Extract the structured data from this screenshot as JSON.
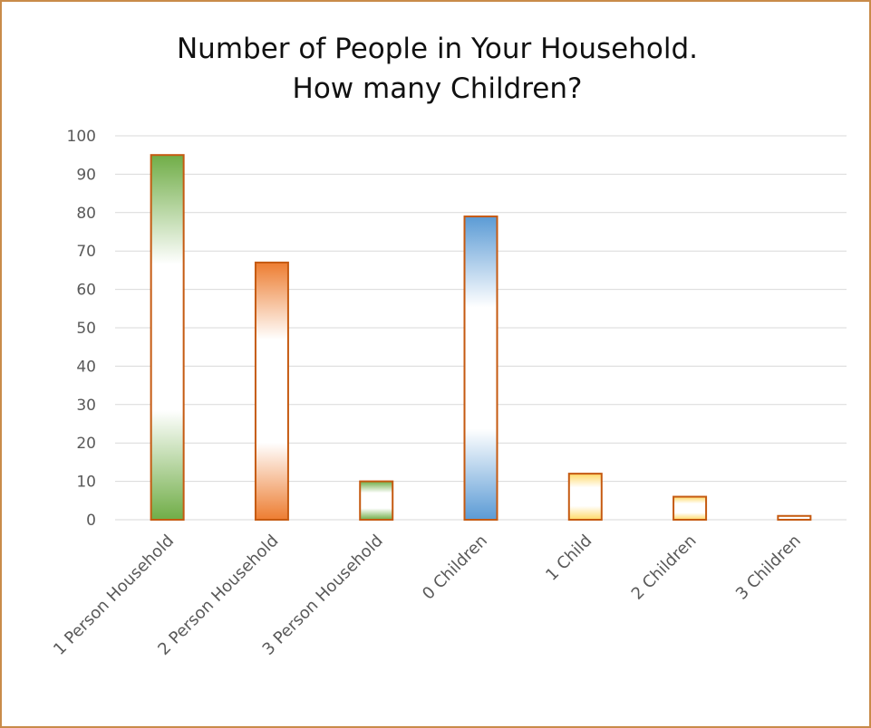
{
  "chart_data": {
    "type": "bar",
    "title_lines": [
      "Number of People in Your Household.",
      "How many Children?"
    ],
    "categories": [
      "1 Person Household",
      "2 Person Household",
      "3 Person Household",
      "0 Children",
      "1 Child",
      "2 Children",
      "3 Children"
    ],
    "values": [
      95,
      67,
      10,
      79,
      12,
      6,
      1
    ],
    "bar_colors": [
      "#70ad47",
      "#ed7d31",
      "#70ad47",
      "#5b9bd5",
      "#ffd966",
      "#ffd966",
      "#ffd966"
    ],
    "bar_outline_color": "#c55a11",
    "ylim": [
      0,
      100
    ],
    "yticks": [
      "0",
      "10",
      "20",
      "30",
      "40",
      "50",
      "60",
      "70",
      "80",
      "90",
      "100"
    ],
    "grid": true,
    "legend": "none",
    "frame_color": "#c98b4a"
  }
}
